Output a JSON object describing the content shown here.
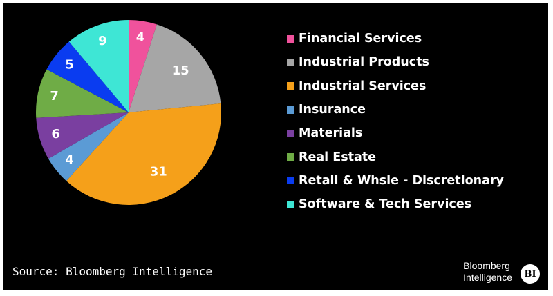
{
  "chart_data": {
    "type": "pie",
    "categories": [
      "Financial Services",
      "Industrial Products",
      "Industrial Services",
      "Insurance",
      "Materials",
      "Real Estate",
      "Retail & Whsle - Discretionary",
      "Software & Tech Services"
    ],
    "values": [
      4,
      15,
      31,
      4,
      6,
      7,
      5,
      9
    ],
    "colors": [
      "#f0529c",
      "#a6a6a6",
      "#f5a01a",
      "#5b9bd5",
      "#7a3fa0",
      "#6fac46",
      "#0a3cf0",
      "#3ee6d5"
    ],
    "legend_position": "right"
  },
  "footer": {
    "source": "Source: Bloomberg Intelligence",
    "brand_line1": "Bloomberg",
    "brand_line2": "Intelligence",
    "brand_badge": "BI"
  }
}
